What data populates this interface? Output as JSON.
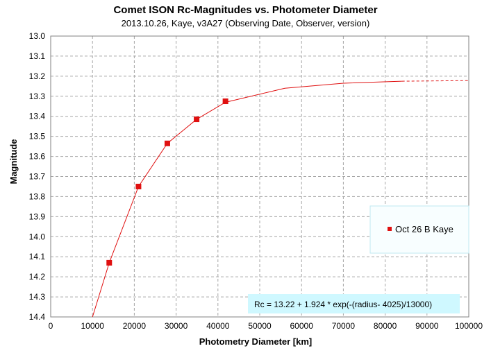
{
  "chart_data": {
    "type": "scatter",
    "title": "Comet ISON Rc-Magnitudes  vs.  Photometer Diameter",
    "subtitle": "2013.10.26,  Kaye, v3A27  (Observing Date, Observer, version)",
    "xlabel": "Photometry Diameter  [km]",
    "ylabel": "Magnitude",
    "xlim": [
      0,
      100000
    ],
    "ylim": [
      13.0,
      14.4
    ],
    "y_inverted": true,
    "grid": true,
    "x_ticks": [
      "0",
      "10000",
      "20000",
      "30000",
      "40000",
      "50000",
      "60000",
      "70000",
      "80000",
      "90000",
      "100000"
    ],
    "y_ticks": [
      "13.0",
      "13.1",
      "13.2",
      "13.3",
      "13.4",
      "13.5",
      "13.6",
      "13.7",
      "13.8",
      "13.9",
      "14.0",
      "14.1",
      "14.2",
      "14.3",
      "14.4"
    ],
    "series": [
      {
        "name": "Oct 26 B Kaye",
        "color": "#e01010",
        "marker": "square",
        "x": [
          14000,
          21000,
          27900,
          34900,
          41800
        ],
        "y": [
          14.13,
          13.75,
          13.535,
          13.415,
          13.325
        ]
      }
    ],
    "fit": {
      "label": "Rc = 13.22 + 1.924  * exp(-(radius- 4025)/13000)",
      "color": "#e01010",
      "x": [
        10000,
        14000,
        21000,
        27900,
        34900,
        41800,
        56000,
        70000,
        84000
      ],
      "y": [
        14.41,
        14.13,
        13.75,
        13.535,
        13.415,
        13.33,
        13.26,
        13.235,
        13.225
      ],
      "dashed_extension": {
        "x": [
          84000,
          100000
        ],
        "y": [
          13.225,
          13.222
        ]
      }
    },
    "legend": {
      "position": "right",
      "entries": [
        "Oct 26 B Kaye"
      ]
    }
  },
  "colors": {
    "grid": "#a6a6a6",
    "legend_bg": "#f8feff",
    "legend_border": "#bfe8f2",
    "equation_bg": "#cff8ff"
  }
}
